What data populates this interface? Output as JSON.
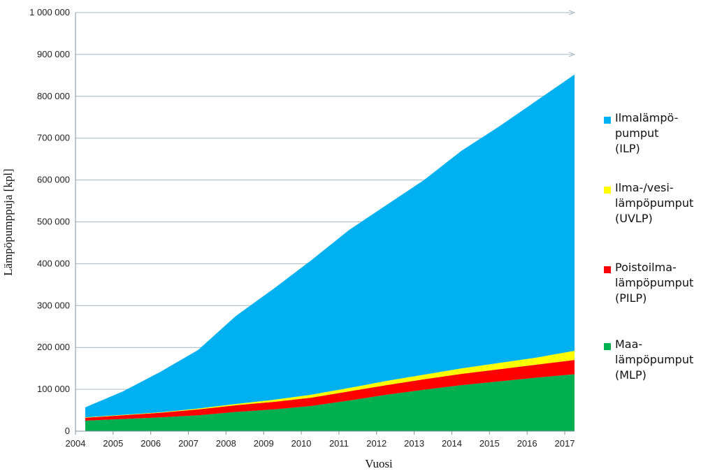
{
  "chart_data": {
    "type": "area",
    "stacked": true,
    "x": [
      "2004",
      "2005",
      "2006",
      "2007",
      "2008",
      "2009",
      "2010",
      "2011",
      "2012",
      "2013",
      "2014",
      "2015",
      "2016",
      "2017"
    ],
    "series": [
      {
        "name": "Maa-\nlämpöpumput\n(MLP)",
        "color": "#00b050",
        "values": [
          25000,
          29000,
          33000,
          38000,
          46000,
          52000,
          60000,
          73000,
          87000,
          99000,
          110000,
          119000,
          128000,
          136000
        ]
      },
      {
        "name": "Poistoilma-\nlämpöpumput\n(PILP)",
        "color": "#ff0000",
        "values": [
          7000,
          9000,
          11000,
          14000,
          16000,
          18000,
          20000,
          22000,
          23000,
          25000,
          27000,
          29000,
          31000,
          34000
        ]
      },
      {
        "name": "Ilma-/vesi-\nlämpöpumput\n(UVLP)",
        "color": "#ffff00",
        "values": [
          1000,
          1000,
          1000,
          2000,
          3000,
          5000,
          7000,
          8000,
          10000,
          11000,
          13000,
          15000,
          17000,
          22000
        ]
      },
      {
        "name": "Ilmalämpö-\npumput\n(ILP)",
        "color": "#00b0f0",
        "values": [
          24000,
          56000,
          97000,
          140000,
          210000,
          265000,
          321000,
          377000,
          420000,
          465000,
          520000,
          565000,
          614000,
          660000
        ]
      }
    ],
    "xlabel": "Vuosi",
    "ylabel": "Lämpöpumppuja [kpl]",
    "ylim": [
      0,
      1000000
    ],
    "yticks": [
      0,
      100000,
      200000,
      300000,
      400000,
      500000,
      600000,
      700000,
      800000,
      900000,
      1000000
    ],
    "ytick_labels": [
      "0",
      "100 000",
      "200 000",
      "300 000",
      "400 000",
      "500 000",
      "600 000",
      "700 000",
      "800 000",
      "900 000",
      "1 000 000"
    ],
    "grid": true,
    "legend_position": "right"
  },
  "legend": {
    "ilp": "Ilmalämpö-\npumput\n(ILP)",
    "uvlp": "Ilma-/vesi-\nlämpöpumput\n(UVLP)",
    "pilp": " Poistoilma-\nlämpöpumput\n(PILP)",
    "mlp": "Maa-\nlämpöpumput\n(MLP)"
  },
  "colors": {
    "ilp": "#00b0f0",
    "uvlp": "#ffff00",
    "pilp": "#ff0000",
    "mlp": "#00b050",
    "grid": "#a6b7c2"
  }
}
